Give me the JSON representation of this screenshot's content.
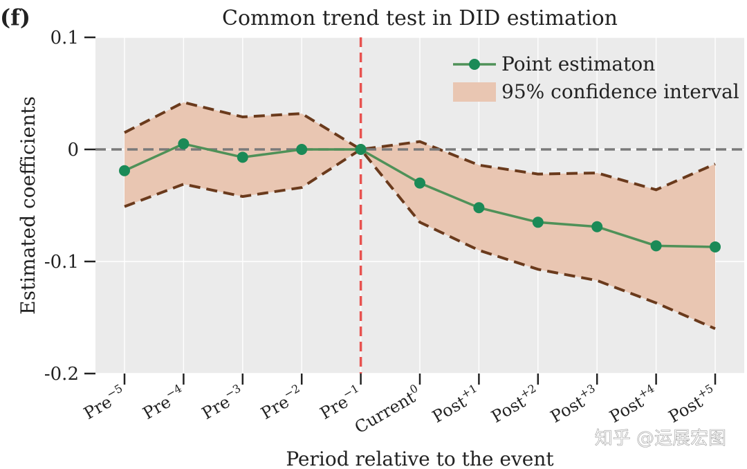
{
  "panel_label": "(f)",
  "watermark": "知乎 @运展宏图",
  "chart_data": {
    "type": "line",
    "title": "Common trend test in DID estimation",
    "xlabel": "Period relative to the event",
    "ylabel": "Estimated coefficients",
    "ylim": [
      -0.2,
      0.1
    ],
    "yticks": [
      0.1,
      0,
      -0.1,
      -0.2
    ],
    "ytick_labels": [
      "0.1",
      "0",
      "-0.1",
      "-0.2"
    ],
    "categories": [
      {
        "base": "Pre",
        "sup": "−5"
      },
      {
        "base": "Pre",
        "sup": "−4"
      },
      {
        "base": "Pre",
        "sup": "−3"
      },
      {
        "base": "Pre",
        "sup": "−2"
      },
      {
        "base": "Pre",
        "sup": "−1"
      },
      {
        "base": "Current",
        "sup": "0"
      },
      {
        "base": "Post",
        "sup": "+1"
      },
      {
        "base": "Post",
        "sup": "+2"
      },
      {
        "base": "Post",
        "sup": "+3"
      },
      {
        "base": "Post",
        "sup": "+4"
      },
      {
        "base": "Post",
        "sup": "+5"
      }
    ],
    "series": [
      {
        "name": "Point estimaton",
        "values": [
          -0.019,
          0.005,
          -0.007,
          0.0,
          0.0,
          -0.03,
          -0.052,
          -0.065,
          -0.069,
          -0.086,
          -0.087
        ]
      }
    ],
    "ci_lower": [
      -0.051,
      -0.031,
      -0.042,
      -0.034,
      0.0,
      -0.065,
      -0.09,
      -0.107,
      -0.117,
      -0.137,
      -0.16
    ],
    "ci_upper": [
      0.015,
      0.042,
      0.029,
      0.032,
      0.0,
      0.007,
      -0.014,
      -0.022,
      -0.021,
      -0.036,
      -0.013
    ],
    "ci_label": "95% confidence interval",
    "reference_hline": 0,
    "reference_vline_category": 4,
    "grid": true,
    "legend_position": "top-right",
    "colors": {
      "background": "#ebebeb",
      "grid": "#ffffff",
      "line": "#4f9158",
      "marker": "#1b8a57",
      "ci_fill": "#e9c6b2",
      "ci_border": "#6a3a1c",
      "zero_line": "#7a7a7a",
      "event_line": "#e8524f"
    }
  }
}
